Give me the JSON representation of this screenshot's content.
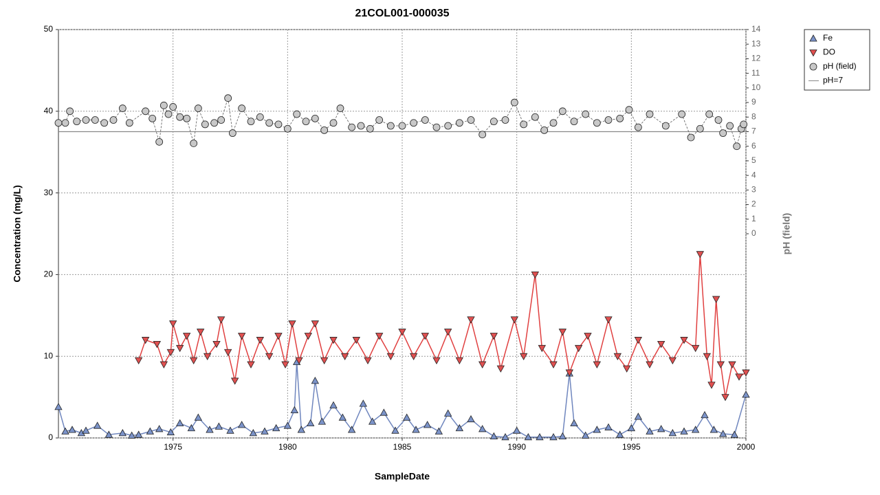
{
  "chart_data": {
    "type": "scatter-line",
    "title": "21COL001-000035",
    "xlabel": "SampleDate",
    "ylabel": "Concentration (mg/L)",
    "y2label": "pH (field)",
    "xlim": [
      1970,
      2000
    ],
    "xticks": [
      1975,
      1980,
      1985,
      1990,
      1995,
      2000
    ],
    "ylim": [
      0,
      50
    ],
    "yticks": [
      0,
      10,
      20,
      30,
      40,
      50
    ],
    "y2lim": [
      -14,
      14
    ],
    "y2ticks": [
      0,
      1,
      2,
      3,
      4,
      5,
      6,
      7,
      8,
      9,
      10,
      11,
      12,
      13,
      14
    ],
    "grid": true,
    "legend": "outside-top-right",
    "series": [
      {
        "name": "Fe",
        "color": "#7b93c9",
        "line_color": "#6f86be",
        "marker": "triangle-up",
        "x": [
          1970.0,
          1970.3,
          1970.6,
          1971.0,
          1971.2,
          1971.7,
          1972.2,
          1972.8,
          1973.2,
          1973.5,
          1974.0,
          1974.4,
          1974.9,
          1975.3,
          1975.8,
          1976.1,
          1976.6,
          1977.0,
          1977.5,
          1978.0,
          1978.5,
          1979.0,
          1979.5,
          1980.0,
          1980.3,
          1980.4,
          1980.6,
          1981.0,
          1981.2,
          1981.5,
          1982.0,
          1982.4,
          1982.8,
          1983.3,
          1983.7,
          1984.2,
          1984.7,
          1985.2,
          1985.6,
          1986.1,
          1986.6,
          1987.0,
          1987.5,
          1988.0,
          1988.5,
          1989.0,
          1989.5,
          1990.0,
          1990.5,
          1991.0,
          1991.6,
          1992.0,
          1992.3,
          1992.5,
          1993.0,
          1993.5,
          1994.0,
          1994.5,
          1995.0,
          1995.3,
          1995.8,
          1996.3,
          1996.8,
          1997.3,
          1997.8,
          1998.2,
          1998.6,
          1999.0,
          1999.5,
          2000.0
        ],
        "values": [
          3.8,
          0.8,
          1.0,
          0.6,
          0.9,
          1.5,
          0.4,
          0.6,
          0.3,
          0.4,
          0.8,
          1.1,
          0.7,
          1.8,
          1.2,
          2.5,
          1.0,
          1.4,
          0.9,
          1.6,
          0.6,
          0.8,
          1.2,
          1.5,
          3.4,
          9.3,
          1.0,
          1.8,
          7.0,
          2.0,
          4.0,
          2.5,
          1.0,
          4.2,
          2.0,
          3.1,
          0.9,
          2.5,
          1.0,
          1.6,
          0.8,
          3.0,
          1.2,
          2.3,
          1.1,
          0.2,
          0.1,
          0.9,
          0.1,
          0.1,
          0.1,
          0.2,
          7.9,
          1.8,
          0.3,
          1.0,
          1.3,
          0.4,
          1.2,
          2.6,
          0.8,
          1.1,
          0.6,
          0.8,
          1.0,
          2.8,
          1.0,
          0.5,
          0.4,
          5.3
        ]
      },
      {
        "name": "DO",
        "color": "#e05050",
        "line_color": "#e04040",
        "marker": "triangle-down",
        "x": [
          1973.5,
          1973.8,
          1974.3,
          1974.6,
          1974.9,
          1975.0,
          1975.3,
          1975.6,
          1975.9,
          1976.2,
          1976.5,
          1976.9,
          1977.1,
          1977.4,
          1977.7,
          1978.0,
          1978.4,
          1978.8,
          1979.2,
          1979.6,
          1979.9,
          1980.2,
          1980.5,
          1980.9,
          1981.2,
          1981.6,
          1982.0,
          1982.5,
          1983.0,
          1983.5,
          1984.0,
          1984.5,
          1985.0,
          1985.5,
          1986.0,
          1986.5,
          1987.0,
          1987.5,
          1988.0,
          1988.5,
          1989.0,
          1989.3,
          1989.9,
          1990.3,
          1990.8,
          1991.1,
          1991.6,
          1992.0,
          1992.3,
          1992.7,
          1993.1,
          1993.5,
          1994.0,
          1994.4,
          1994.8,
          1995.3,
          1995.8,
          1996.3,
          1996.8,
          1997.3,
          1997.8,
          1998.0,
          1998.3,
          1998.5,
          1998.7,
          1998.9,
          1999.1,
          1999.4,
          1999.7,
          2000.0
        ],
        "values": [
          9.5,
          12.0,
          11.5,
          9.0,
          10.5,
          14.0,
          11.0,
          12.5,
          9.5,
          13.0,
          10.0,
          11.5,
          14.5,
          10.5,
          7.0,
          12.5,
          9.0,
          12.0,
          10.0,
          12.5,
          9.0,
          14.0,
          9.5,
          12.5,
          14.0,
          9.5,
          12.0,
          10.0,
          12.0,
          9.5,
          12.5,
          10.0,
          13.0,
          10.0,
          12.5,
          9.5,
          13.0,
          9.5,
          14.5,
          9.0,
          12.5,
          8.5,
          14.5,
          10.0,
          20.0,
          11.0,
          9.0,
          13.0,
          8.0,
          11.0,
          12.5,
          9.0,
          14.5,
          10.0,
          8.5,
          12.0,
          9.0,
          11.5,
          9.5,
          12.0,
          11.0,
          22.5,
          10.0,
          6.5,
          17.0,
          9.0,
          5.0,
          9.0,
          7.5,
          8.0
        ]
      },
      {
        "name": "pH (field)",
        "color": "#c8c8c8",
        "line_color": "#555555",
        "marker": "circle",
        "axis": "y2",
        "x": [
          1970.0,
          1970.3,
          1970.5,
          1970.8,
          1971.2,
          1971.6,
          1972.0,
          1972.4,
          1972.8,
          1973.1,
          1973.8,
          1974.1,
          1974.4,
          1974.6,
          1974.8,
          1975.0,
          1975.3,
          1975.6,
          1975.9,
          1976.1,
          1976.4,
          1976.8,
          1977.1,
          1977.4,
          1977.6,
          1978.0,
          1978.4,
          1978.8,
          1979.2,
          1979.6,
          1980.0,
          1980.4,
          1980.8,
          1981.2,
          1981.6,
          1982.0,
          1982.3,
          1982.8,
          1983.2,
          1983.6,
          1984.0,
          1984.5,
          1985.0,
          1985.5,
          1986.0,
          1986.5,
          1987.0,
          1987.5,
          1988.0,
          1988.5,
          1989.0,
          1989.5,
          1989.9,
          1990.3,
          1990.8,
          1991.2,
          1991.6,
          1992.0,
          1992.5,
          1993.0,
          1993.5,
          1994.0,
          1994.5,
          1994.9,
          1995.3,
          1995.8,
          1996.5,
          1997.2,
          1997.6,
          1998.0,
          1998.4,
          1998.8,
          1999.0,
          1999.3,
          1999.6,
          1999.8,
          1999.9
        ],
        "values": [
          7.6,
          7.6,
          8.4,
          7.7,
          7.8,
          7.8,
          7.6,
          7.8,
          8.6,
          7.6,
          8.4,
          7.9,
          6.3,
          8.8,
          8.2,
          8.7,
          8.0,
          7.9,
          6.2,
          8.6,
          7.5,
          7.6,
          7.8,
          9.3,
          6.9,
          8.6,
          7.7,
          8.0,
          7.6,
          7.5,
          7.2,
          8.2,
          7.7,
          7.9,
          7.1,
          7.6,
          8.6,
          7.3,
          7.4,
          7.2,
          7.8,
          7.4,
          7.4,
          7.6,
          7.8,
          7.3,
          7.4,
          7.6,
          7.8,
          6.8,
          7.7,
          7.8,
          9.0,
          7.5,
          8.0,
          7.1,
          7.6,
          8.4,
          7.7,
          8.2,
          7.6,
          7.8,
          7.9,
          8.5,
          7.3,
          8.2,
          7.4,
          8.2,
          6.6,
          7.2,
          8.2,
          7.8,
          6.9,
          7.4,
          6.0,
          7.2,
          7.5
        ]
      }
    ],
    "reference_lines": [
      {
        "name": "pH=7",
        "value": 7,
        "axis": "y2",
        "color": "#888888"
      }
    ]
  }
}
